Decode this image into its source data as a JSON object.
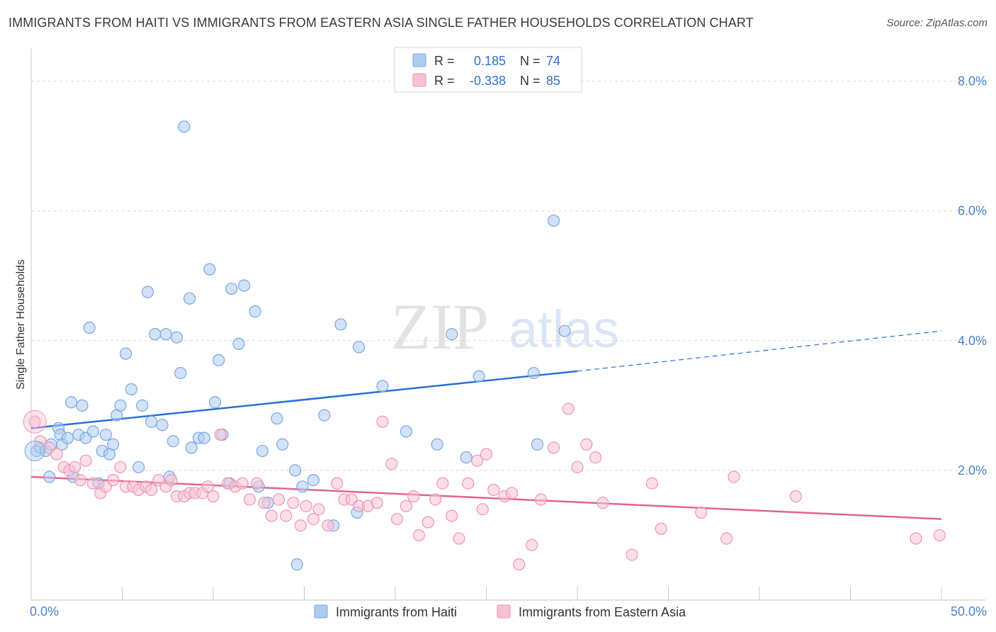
{
  "title": "IMMIGRANTS FROM HAITI VS IMMIGRANTS FROM EASTERN ASIA SINGLE FATHER HOUSEHOLDS CORRELATION CHART",
  "source": "Source: ZipAtlas.com",
  "watermark": {
    "zip": "ZIP",
    "atlas": "atlas"
  },
  "colors": {
    "haiti_fill": "#aecbf0",
    "haiti_stroke": "#7aa7df",
    "haiti_line": "#2970d6",
    "asia_fill": "#f7c2d3",
    "asia_stroke": "#ee95b3",
    "asia_line": "#e2648f",
    "tick_text": "#4a7fcf",
    "grid": "#d9d9d9"
  },
  "legend": {
    "rows": [
      {
        "r_label": "R =",
        "r_value": "0.185",
        "n_label": "N =",
        "n_value": "74"
      },
      {
        "r_label": "R =",
        "r_value": "-0.338",
        "n_label": "N =",
        "n_value": "85"
      }
    ]
  },
  "chart_data": {
    "type": "scatter",
    "title": "IMMIGRANTS FROM HAITI VS IMMIGRANTS FROM EASTERN ASIA SINGLE FATHER HOUSEHOLDS CORRELATION CHART",
    "xlabel": "",
    "ylabel": "Single Father Households",
    "xlim": [
      0,
      50
    ],
    "ylim": [
      0,
      8.4
    ],
    "x_tick_labels": [
      "0.0%",
      "50.0%"
    ],
    "y_ticks": [
      2,
      4,
      6,
      8
    ],
    "y_tick_labels": [
      "2.0%",
      "4.0%",
      "6.0%",
      "8.0%"
    ],
    "legend_position": "bottom",
    "series": [
      {
        "name": "Immigrants from Haiti",
        "r": 0.185,
        "n": 74,
        "trend": {
          "x0": 0,
          "y0": 2.65,
          "x1": 30,
          "y1": 3.53,
          "dash_x1": 50,
          "dash_y1": 4.15
        },
        "points": [
          [
            0.3,
            2.3
          ],
          [
            0.5,
            2.35
          ],
          [
            0.8,
            2.3
          ],
          [
            1.0,
            1.9
          ],
          [
            1.1,
            2.4
          ],
          [
            1.5,
            2.65
          ],
          [
            1.6,
            2.55
          ],
          [
            1.7,
            2.4
          ],
          [
            2.0,
            2.5
          ],
          [
            2.2,
            3.05
          ],
          [
            2.3,
            1.9
          ],
          [
            2.6,
            2.55
          ],
          [
            2.8,
            3.0
          ],
          [
            3.0,
            2.5
          ],
          [
            3.2,
            4.2
          ],
          [
            3.4,
            2.6
          ],
          [
            3.7,
            1.8
          ],
          [
            3.9,
            2.3
          ],
          [
            4.1,
            2.55
          ],
          [
            4.3,
            2.25
          ],
          [
            4.5,
            2.4
          ],
          [
            4.7,
            2.85
          ],
          [
            4.9,
            3.0
          ],
          [
            5.2,
            3.8
          ],
          [
            5.5,
            3.25
          ],
          [
            5.9,
            2.05
          ],
          [
            6.1,
            3.0
          ],
          [
            6.4,
            4.75
          ],
          [
            6.6,
            2.75
          ],
          [
            6.8,
            4.1
          ],
          [
            7.2,
            2.7
          ],
          [
            7.4,
            4.1
          ],
          [
            7.6,
            1.9
          ],
          [
            7.8,
            2.45
          ],
          [
            8.0,
            4.05
          ],
          [
            8.2,
            3.5
          ],
          [
            8.4,
            7.3
          ],
          [
            8.7,
            4.65
          ],
          [
            8.8,
            2.35
          ],
          [
            9.2,
            2.5
          ],
          [
            9.5,
            2.5
          ],
          [
            9.8,
            5.1
          ],
          [
            10.1,
            3.05
          ],
          [
            10.3,
            3.7
          ],
          [
            10.5,
            2.55
          ],
          [
            10.9,
            1.8
          ],
          [
            11.0,
            4.8
          ],
          [
            11.4,
            3.95
          ],
          [
            11.7,
            4.85
          ],
          [
            12.3,
            4.45
          ],
          [
            12.5,
            1.75
          ],
          [
            12.7,
            2.3
          ],
          [
            13.0,
            1.5
          ],
          [
            13.5,
            2.8
          ],
          [
            13.8,
            2.4
          ],
          [
            14.5,
            2.0
          ],
          [
            14.6,
            0.55
          ],
          [
            14.9,
            1.75
          ],
          [
            15.5,
            1.85
          ],
          [
            16.1,
            2.85
          ],
          [
            16.6,
            1.15
          ],
          [
            17.0,
            4.25
          ],
          [
            17.9,
            1.35
          ],
          [
            18.0,
            3.9
          ],
          [
            19.3,
            3.3
          ],
          [
            20.6,
            2.6
          ],
          [
            22.3,
            2.4
          ],
          [
            23.1,
            4.1
          ],
          [
            23.9,
            2.2
          ],
          [
            24.6,
            3.45
          ],
          [
            27.6,
            3.5
          ],
          [
            27.8,
            2.4
          ],
          [
            28.7,
            5.85
          ],
          [
            29.3,
            4.15
          ]
        ]
      },
      {
        "name": "Immigrants from Eastern Asia",
        "r": -0.338,
        "n": 85,
        "trend": {
          "x0": 0,
          "y0": 1.9,
          "x1": 50,
          "y1": 1.25
        },
        "points": [
          [
            0.2,
            2.75
          ],
          [
            0.5,
            2.45
          ],
          [
            1.0,
            2.35
          ],
          [
            1.4,
            2.25
          ],
          [
            1.8,
            2.05
          ],
          [
            2.1,
            2.0
          ],
          [
            2.4,
            2.05
          ],
          [
            2.7,
            1.85
          ],
          [
            3.0,
            2.15
          ],
          [
            3.4,
            1.8
          ],
          [
            3.8,
            1.65
          ],
          [
            4.1,
            1.75
          ],
          [
            4.5,
            1.85
          ],
          [
            4.9,
            2.05
          ],
          [
            5.2,
            1.75
          ],
          [
            5.6,
            1.75
          ],
          [
            5.9,
            1.7
          ],
          [
            6.3,
            1.75
          ],
          [
            6.6,
            1.7
          ],
          [
            7.0,
            1.85
          ],
          [
            7.4,
            1.75
          ],
          [
            7.7,
            1.85
          ],
          [
            8.0,
            1.6
          ],
          [
            8.4,
            1.6
          ],
          [
            8.7,
            1.65
          ],
          [
            9.0,
            1.65
          ],
          [
            9.4,
            1.65
          ],
          [
            9.7,
            1.75
          ],
          [
            10.0,
            1.6
          ],
          [
            10.4,
            2.55
          ],
          [
            10.8,
            1.8
          ],
          [
            11.2,
            1.75
          ],
          [
            11.6,
            1.8
          ],
          [
            12.0,
            1.55
          ],
          [
            12.4,
            1.8
          ],
          [
            12.8,
            1.5
          ],
          [
            13.2,
            1.3
          ],
          [
            13.6,
            1.55
          ],
          [
            14.0,
            1.3
          ],
          [
            14.4,
            1.5
          ],
          [
            14.8,
            1.15
          ],
          [
            15.1,
            1.45
          ],
          [
            15.5,
            1.25
          ],
          [
            15.8,
            1.4
          ],
          [
            16.3,
            1.15
          ],
          [
            16.8,
            1.8
          ],
          [
            17.2,
            1.55
          ],
          [
            17.6,
            1.55
          ],
          [
            18.0,
            1.45
          ],
          [
            18.5,
            1.45
          ],
          [
            19.0,
            1.5
          ],
          [
            19.3,
            2.75
          ],
          [
            19.8,
            2.1
          ],
          [
            20.1,
            1.25
          ],
          [
            20.6,
            1.45
          ],
          [
            21.0,
            1.6
          ],
          [
            21.3,
            1.0
          ],
          [
            21.8,
            1.2
          ],
          [
            22.2,
            1.55
          ],
          [
            22.6,
            1.8
          ],
          [
            23.1,
            1.3
          ],
          [
            23.5,
            0.95
          ],
          [
            24.0,
            1.8
          ],
          [
            24.5,
            2.15
          ],
          [
            24.8,
            1.4
          ],
          [
            25.0,
            2.25
          ],
          [
            25.4,
            1.7
          ],
          [
            26.0,
            1.6
          ],
          [
            26.4,
            1.65
          ],
          [
            26.8,
            0.55
          ],
          [
            27.5,
            0.85
          ],
          [
            28.0,
            1.55
          ],
          [
            28.7,
            2.35
          ],
          [
            29.5,
            2.95
          ],
          [
            30.0,
            2.05
          ],
          [
            30.5,
            2.4
          ],
          [
            31.0,
            2.2
          ],
          [
            31.4,
            1.5
          ],
          [
            33.0,
            0.7
          ],
          [
            34.1,
            1.8
          ],
          [
            34.6,
            1.1
          ],
          [
            36.8,
            1.35
          ],
          [
            38.2,
            0.95
          ],
          [
            38.6,
            1.9
          ],
          [
            42.0,
            1.6
          ],
          [
            48.6,
            0.95
          ],
          [
            49.9,
            1.0
          ]
        ]
      }
    ]
  },
  "bottom_legend": [
    {
      "label": "Immigrants from Haiti"
    },
    {
      "label": "Immigrants from Eastern Asia"
    }
  ]
}
